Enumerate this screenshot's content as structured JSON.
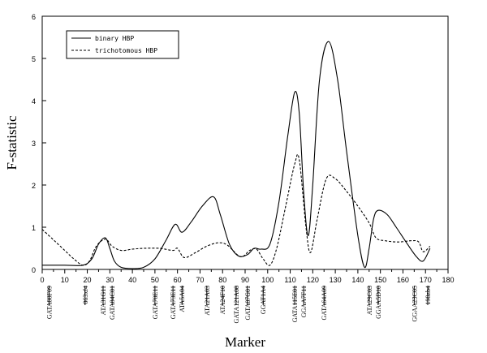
{
  "chart_data": {
    "type": "line",
    "xlabel": "Marker",
    "ylabel": "F-statistic",
    "xlim": [
      0,
      180
    ],
    "ylim": [
      0,
      6
    ],
    "xticks": [
      "0",
      "10",
      "20",
      "30",
      "40",
      "50",
      "60",
      "70",
      "80",
      "90",
      "100",
      "110",
      "120",
      "130",
      "140",
      "150",
      "160",
      "170",
      "180"
    ],
    "yticks": [
      "0",
      "1",
      "2",
      "3",
      "4",
      "5",
      "6"
    ],
    "grid": false,
    "legend_position": "top-left",
    "series": [
      {
        "name": "binary HBP",
        "style": "solid",
        "color": "#000000",
        "points": [
          [
            0,
            0.1
          ],
          [
            10,
            0.1
          ],
          [
            18,
            0.1
          ],
          [
            22,
            0.25
          ],
          [
            25,
            0.6
          ],
          [
            28,
            0.75
          ],
          [
            30,
            0.5
          ],
          [
            32,
            0.2
          ],
          [
            35,
            0.05
          ],
          [
            40,
            0.02
          ],
          [
            45,
            0.05
          ],
          [
            50,
            0.25
          ],
          [
            55,
            0.7
          ],
          [
            59,
            1.07
          ],
          [
            62,
            0.88
          ],
          [
            66,
            1.12
          ],
          [
            71,
            1.5
          ],
          [
            76,
            1.72
          ],
          [
            79,
            1.3
          ],
          [
            83,
            0.6
          ],
          [
            87,
            0.32
          ],
          [
            91,
            0.35
          ],
          [
            94,
            0.5
          ],
          [
            97,
            0.48
          ],
          [
            101,
            0.6
          ],
          [
            105,
            1.6
          ],
          [
            109,
            3.2
          ],
          [
            112,
            4.2
          ],
          [
            114,
            3.7
          ],
          [
            116,
            1.8
          ],
          [
            118,
            0.8
          ],
          [
            120,
            2.0
          ],
          [
            123,
            4.5
          ],
          [
            127,
            5.4
          ],
          [
            131,
            4.5
          ],
          [
            135,
            2.8
          ],
          [
            140,
            0.8
          ],
          [
            143,
            0.05
          ],
          [
            145,
            0.5
          ],
          [
            147,
            1.2
          ],
          [
            149,
            1.4
          ],
          [
            153,
            1.3
          ],
          [
            157,
            1.0
          ],
          [
            162,
            0.6
          ],
          [
            166,
            0.3
          ],
          [
            169,
            0.2
          ],
          [
            172,
            0.5
          ]
        ]
      },
      {
        "name": "trichotomous HBP",
        "style": "dashed",
        "color": "#000000",
        "points": [
          [
            0,
            0.95
          ],
          [
            5,
            0.7
          ],
          [
            10,
            0.45
          ],
          [
            14,
            0.25
          ],
          [
            18,
            0.1
          ],
          [
            21,
            0.2
          ],
          [
            24,
            0.55
          ],
          [
            28,
            0.72
          ],
          [
            31,
            0.55
          ],
          [
            35,
            0.45
          ],
          [
            40,
            0.48
          ],
          [
            45,
            0.5
          ],
          [
            52,
            0.5
          ],
          [
            58,
            0.45
          ],
          [
            60,
            0.5
          ],
          [
            63,
            0.28
          ],
          [
            68,
            0.4
          ],
          [
            73,
            0.55
          ],
          [
            78,
            0.63
          ],
          [
            82,
            0.58
          ],
          [
            88,
            0.3
          ],
          [
            92,
            0.45
          ],
          [
            95,
            0.48
          ],
          [
            98,
            0.25
          ],
          [
            101,
            0.1
          ],
          [
            104,
            0.5
          ],
          [
            108,
            1.5
          ],
          [
            112,
            2.5
          ],
          [
            114,
            2.6
          ],
          [
            117,
            1.0
          ],
          [
            119,
            0.4
          ],
          [
            122,
            1.2
          ],
          [
            126,
            2.15
          ],
          [
            130,
            2.15
          ],
          [
            135,
            1.85
          ],
          [
            140,
            1.5
          ],
          [
            145,
            1.1
          ],
          [
            148,
            0.75
          ],
          [
            152,
            0.68
          ],
          [
            158,
            0.65
          ],
          [
            164,
            0.68
          ],
          [
            167,
            0.65
          ],
          [
            169,
            0.42
          ],
          [
            172,
            0.55
          ]
        ]
      }
    ],
    "markers": [
      {
        "label": "GATA88F09",
        "x": 3
      },
      {
        "label": "063xf4",
        "x": 19
      },
      {
        "label": "ATA31G11",
        "x": 27
      },
      {
        "label": "GATA84C01",
        "x": 31
      },
      {
        "label": "GATA70E11",
        "x": 50
      },
      {
        "label": "GATA73E11",
        "x": 58
      },
      {
        "label": "ATA5A04",
        "x": 62
      },
      {
        "label": "ATA21A03",
        "x": 73
      },
      {
        "label": "ATA24F10",
        "x": 80
      },
      {
        "label": "GATA121A08",
        "x": 86
      },
      {
        "label": "GATA87G01",
        "x": 91
      },
      {
        "label": "GGAT1A4",
        "x": 98
      },
      {
        "label": "GATA115E01",
        "x": 112
      },
      {
        "label": "GGAA7F11",
        "x": 116
      },
      {
        "label": "GATA64A09",
        "x": 125
      },
      {
        "label": "ATA29C03",
        "x": 145
      },
      {
        "label": "GGAA5D10",
        "x": 149
      },
      {
        "label": "GGAA23C05",
        "x": 165
      },
      {
        "label": "198zb4",
        "x": 171
      }
    ]
  }
}
